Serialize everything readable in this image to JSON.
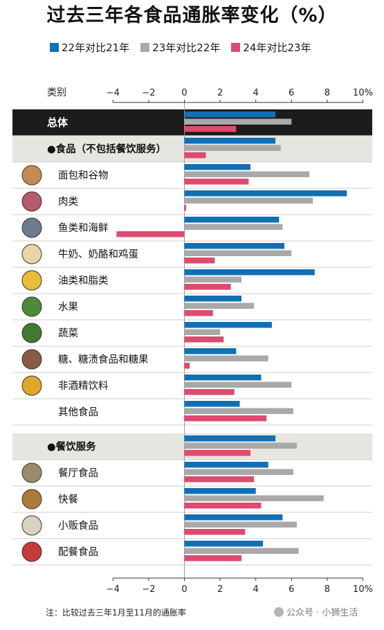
{
  "title": "过去三年各食品通胀率变化（%）",
  "footnote": "注：比较过去三年1月至11月的通胀率",
  "watermark": "公众号 · 小狮生活",
  "colors": {
    "series_1": "#1170b3",
    "series_2": "#a9a9a9",
    "series_3": "#df4a6f",
    "header_band": "#1c1c1c",
    "section_band": "#e6e5e0"
  },
  "chart_data": {
    "type": "bar",
    "orientation": "horizontal",
    "category_axis_label": "类别",
    "x_ticks": [
      "−4",
      "−2",
      "0",
      "2",
      "4",
      "6",
      "8",
      "10%"
    ],
    "xlim": [
      -4,
      10
    ],
    "grid": false,
    "legend_position": "top",
    "series": [
      {
        "name": "22年对比21年",
        "color": "#1170b3"
      },
      {
        "name": "23年对比22年",
        "color": "#a9a9a9"
      },
      {
        "name": "24年对比23年",
        "color": "#df4a6f"
      }
    ],
    "rows": [
      {
        "label": "总体",
        "style": "header",
        "values": [
          5.1,
          6.0,
          2.9
        ]
      },
      {
        "label": "●食品（不包括餐饮服务）",
        "style": "section",
        "values": [
          5.1,
          5.4,
          1.2
        ]
      },
      {
        "label": "面包和谷物",
        "style": "item",
        "values": [
          3.7,
          7.0,
          3.6
        ]
      },
      {
        "label": "肉类",
        "style": "item",
        "values": [
          9.1,
          7.2,
          0.1
        ]
      },
      {
        "label": "鱼类和海鲜",
        "style": "item",
        "values": [
          5.3,
          5.5,
          -3.8
        ]
      },
      {
        "label": "牛奶、奶酪和鸡蛋",
        "style": "item",
        "values": [
          5.6,
          6.0,
          1.7
        ]
      },
      {
        "label": "油类和脂类",
        "style": "item",
        "values": [
          7.3,
          3.2,
          2.6
        ]
      },
      {
        "label": "水果",
        "style": "item",
        "values": [
          3.2,
          3.9,
          1.6
        ]
      },
      {
        "label": "蔬菜",
        "style": "item",
        "values": [
          4.9,
          2.0,
          2.2
        ]
      },
      {
        "label": "糖、糖渍食品和糖果",
        "style": "item",
        "values": [
          2.9,
          4.7,
          0.3
        ]
      },
      {
        "label": "非酒精饮料",
        "style": "item",
        "values": [
          4.3,
          6.0,
          2.8
        ]
      },
      {
        "label": "其他食品",
        "style": "item",
        "values": [
          3.1,
          6.1,
          4.6
        ]
      },
      {
        "label": "●餐饮服务",
        "style": "section",
        "values": [
          5.1,
          6.3,
          3.7
        ]
      },
      {
        "label": "餐厅食品",
        "style": "item",
        "values": [
          4.7,
          6.1,
          3.9
        ]
      },
      {
        "label": "快餐",
        "style": "item",
        "values": [
          4.0,
          7.8,
          4.3
        ]
      },
      {
        "label": "小贩食品",
        "style": "item",
        "values": [
          5.5,
          6.3,
          3.4
        ]
      },
      {
        "label": "配餐食品",
        "style": "item",
        "values": [
          4.4,
          6.4,
          3.2
        ]
      }
    ]
  }
}
